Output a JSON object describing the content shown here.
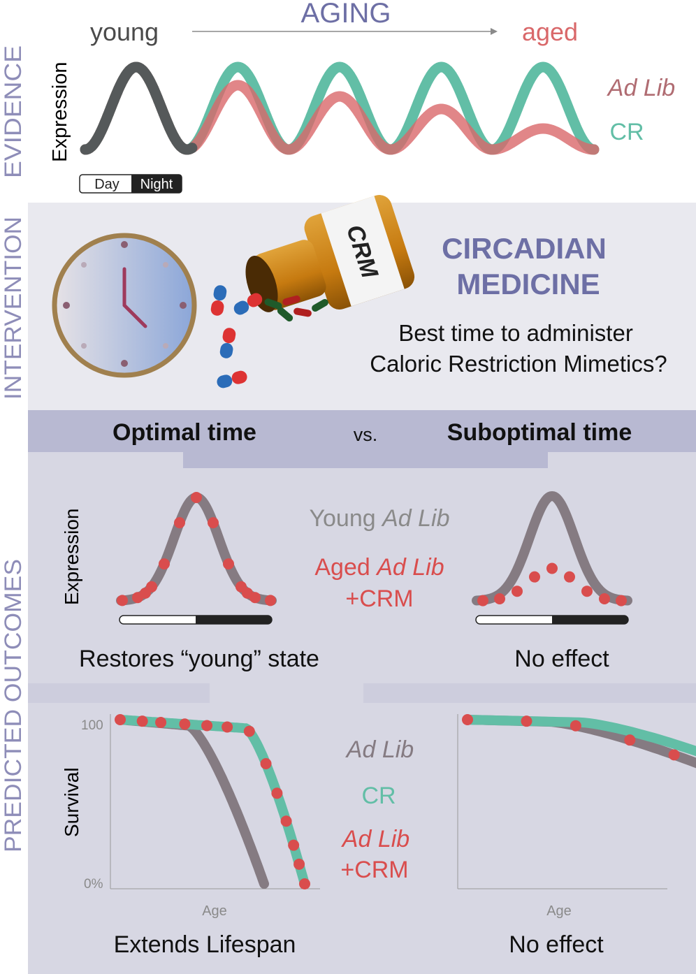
{
  "evidence": {
    "section_label": "EVIDENCE",
    "aging_label": "AGING",
    "young_label": "young",
    "aged_label": "aged",
    "ylabel": "Expression",
    "day_label": "Day",
    "night_label": "Night",
    "legend": {
      "adlib_label": "Ad Lib",
      "cr_label": "CR"
    }
  },
  "intervention": {
    "section_label": "INTERVENTION",
    "title_line1": "CIRCADIAN",
    "title_line2": "MEDICINE",
    "question_line1": "Best time to administer",
    "question_line2": "Caloric Restriction Mimetics?",
    "bottle_label": "CRM"
  },
  "outcomes": {
    "section_label": "PREDICTED OUTCOMES",
    "optimal_label": "Optimal time",
    "vs_label": "vs.",
    "suboptimal_label": "Suboptimal time",
    "expression_ylabel": "Expression",
    "legend_young_prefix": "Young ",
    "legend_young_italic": "Ad Lib",
    "legend_aged_prefix": "Aged ",
    "legend_aged_italic": "Ad Lib",
    "legend_aged_suffix": "+CRM",
    "optimal_expression_caption": "Restores “young” state",
    "suboptimal_expression_caption": "No effect",
    "survival_ylabel": "Survival",
    "survival_tick_top": "100",
    "survival_tick_bottom": "0%",
    "survival_xlabel_left": "Age",
    "survival_xlabel_right": "Age",
    "survival_legend_adlib": "Ad Lib",
    "survival_legend_cr": "CR",
    "survival_legend_crm_line1": "Ad Lib",
    "survival_legend_crm_line2": "+CRM",
    "optimal_survival_caption": "Extends Lifespan",
    "suboptimal_survival_caption": "No effect"
  },
  "colors": {
    "adlib": "#857b82",
    "cr": "#62bea6",
    "crm": "#d94d4d",
    "aged": "#d9686a",
    "section": "#8e8db8",
    "title": "#6d6fa5",
    "panel_light": "#e9e9ef",
    "panel_mid": "#d7d7e3",
    "band": "#b8b9d2"
  }
}
